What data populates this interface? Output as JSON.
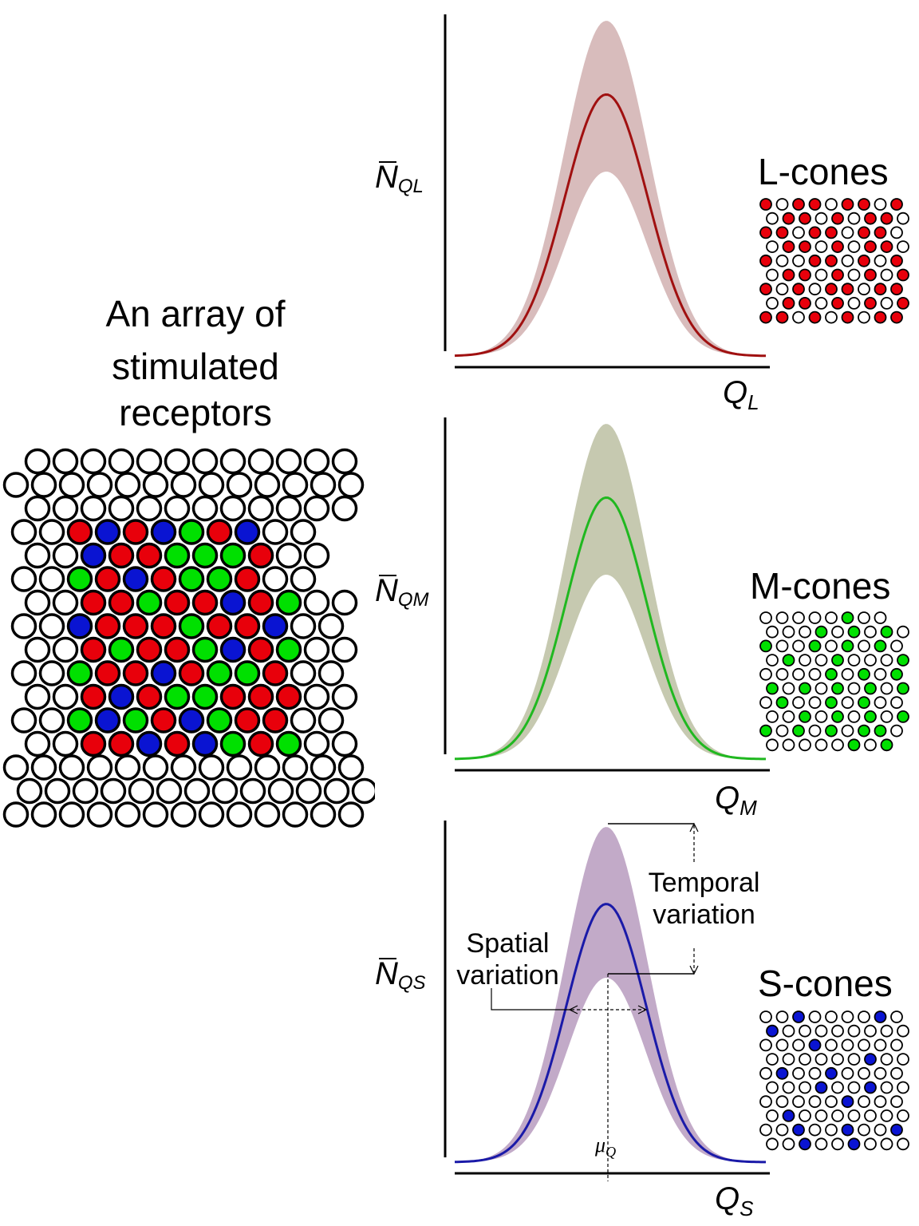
{
  "title": [
    "An array of",
    "stimulated",
    "receptors"
  ],
  "colors": {
    "red": "#e8000b",
    "green": "#00e000",
    "blue": "#0a14d2",
    "empty": "#ffffff",
    "stroke": "#000000",
    "band_L": "#d8bcbc",
    "line_L": "#a01010",
    "band_M": "#c6c9b0",
    "line_M": "#20b820",
    "band_S": "#c2aac8",
    "line_S": "#1a1aa8"
  },
  "panels": [
    {
      "id": "L",
      "ylabel_sym": "N",
      "ylabel_sub": "QL",
      "xlabel_sym": "Q",
      "xlabel_sub": "L",
      "cone_label": "L-cones",
      "cone_color": "red"
    },
    {
      "id": "M",
      "ylabel_sym": "N",
      "ylabel_sub": "QM",
      "xlabel_sym": "Q",
      "xlabel_sub": "M",
      "cone_label": "M-cones",
      "cone_color": "green"
    },
    {
      "id": "S",
      "ylabel_sym": "N",
      "ylabel_sub": "QS",
      "xlabel_sym": "Q",
      "xlabel_sub": "S",
      "cone_label": "S-cones",
      "cone_color": "blue"
    }
  ],
  "annotations": {
    "temporal": [
      "Temporal",
      "variation"
    ],
    "spatial": [
      "Spatial",
      "variation"
    ],
    "mu_sym": "μ",
    "mu_sub": "Q"
  },
  "receptor_array": {
    "rows": [
      "oooooooooooo",
      "ooooooooooooo",
      "oooooooooooo",
      "ooRBRBGRBoo",
      "ooBRRGGGRoo",
      "ooGRBRGGRoo",
      "ooRRGRRBRGoo",
      "ooBRRRGRRBoo",
      "ooRGRRGBRGoo",
      "ooGRRBRGGRoo",
      "ooRBRGGRRRoo",
      "ooGBGRBGRRoo",
      "ooRRBRBGRGoo",
      "ooooooooooooo",
      "ooooooooooooo",
      "ooooooooooooo"
    ]
  },
  "cone_mosaics": {
    "L": [
      "xoxxoxxoxoxo",
      "oxxoxoxxoxo",
      "xxoxxoxxoxo",
      "oxxoxoxxoxx",
      "xooxxoxoxxo",
      "oxxoxoxoxoo",
      "xoxoxxoxxox",
      "oxxoxoxoxoo",
      "xxoxoxoxxoo"
    ],
    "M": [
      "oooooxoo",
      "oooxoxoxo",
      "xooxoxoxo",
      "oxooxoooxo",
      "ooooxoxox",
      "xoxoxoxox",
      "oxooxoxoo",
      "ooxoxoxox",
      "xoxoxoxxo",
      "oooooxox"
    ],
    "S": [
      "ooxooooxox",
      "xooooooooo",
      "oooxoooooo",
      "ooooooxooo",
      "oxooxoooox",
      "oooxooxooo",
      "oooooxooox",
      "oxooooooooo",
      "ooxooxooxoo",
      "ooxooxoooo"
    ]
  }
}
